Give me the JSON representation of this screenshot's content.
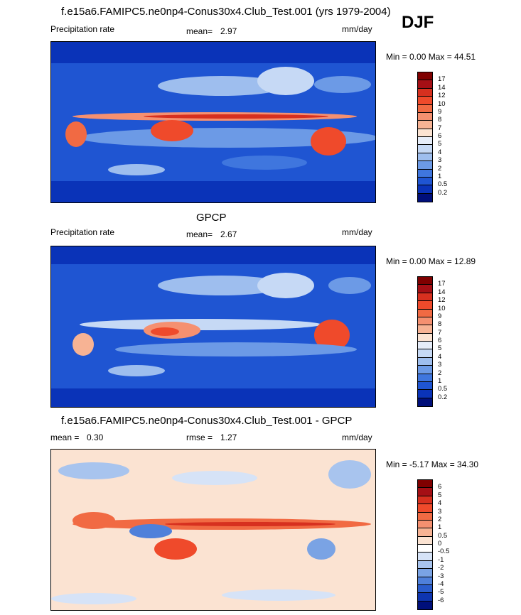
{
  "season": "DJF",
  "panels": [
    {
      "title": "f.e15a6.FAMIPC5.ne0np4-Conus30x4.Club_Test.001 (yrs 1979-2004)",
      "left_label": "Precipitation rate",
      "mean_label": "mean=",
      "mean_value": "2.97",
      "units": "mm/day",
      "minmax": "Min =   0.00 Max = 44.51",
      "colorbar_ticks": [
        "17",
        "14",
        "12",
        "10",
        "9",
        "8",
        "7",
        "6",
        "5",
        "4",
        "3",
        "2",
        "1",
        "0.5",
        "0.2"
      ],
      "colorbar_colors": [
        "#7f0000",
        "#a50f15",
        "#d7301f",
        "#ef4a2b",
        "#f16a43",
        "#f59070",
        "#f7b394",
        "#fbe3d2",
        "#e6edf9",
        "#c6d9f5",
        "#9ebeee",
        "#6c9ae6",
        "#3f76de",
        "#1f55d2",
        "#0a33b8",
        "#000f7a"
      ]
    },
    {
      "title": "GPCP",
      "left_label": "Precipitation rate",
      "mean_label": "mean=",
      "mean_value": "2.67",
      "units": "mm/day",
      "minmax": "Min =   0.00 Max = 12.89",
      "colorbar_ticks": [
        "17",
        "14",
        "12",
        "10",
        "9",
        "8",
        "7",
        "6",
        "5",
        "4",
        "3",
        "2",
        "1",
        "0.5",
        "0.2"
      ],
      "colorbar_colors": [
        "#7f0000",
        "#a50f15",
        "#d7301f",
        "#ef4a2b",
        "#f16a43",
        "#f59070",
        "#f7b394",
        "#fbe3d2",
        "#e6edf9",
        "#c6d9f5",
        "#9ebeee",
        "#6c9ae6",
        "#3f76de",
        "#1f55d2",
        "#0a33b8",
        "#000f7a"
      ]
    },
    {
      "title": "f.e15a6.FAMIPC5.ne0np4-Conus30x4.Club_Test.001 - GPCP",
      "left_label": "mean =",
      "mean_label": "rmse =",
      "mean_value": "1.27",
      "left_value": "0.30",
      "units": "mm/day",
      "minmax": "Min =  -5.17 Max = 34.30",
      "colorbar_ticks": [
        "6",
        "5",
        "4",
        "3",
        "2",
        "1",
        "0.5",
        "0",
        "-0.5",
        "-1",
        "-2",
        "-3",
        "-4",
        "-5",
        "-6"
      ],
      "colorbar_colors": [
        "#7f0000",
        "#a50f15",
        "#d7301f",
        "#ef4a2b",
        "#f16a43",
        "#f59070",
        "#f7b394",
        "#fbe3d2",
        "#ffffff",
        "#d6e3f7",
        "#a8c4ee",
        "#7aa3e4",
        "#4f80da",
        "#2a5ccc",
        "#0e35b0",
        "#000f7a"
      ]
    }
  ]
}
